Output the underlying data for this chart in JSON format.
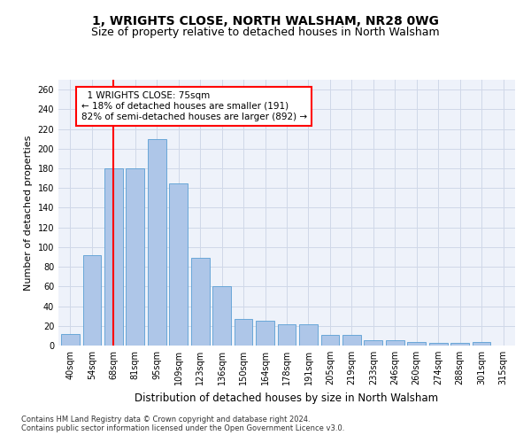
{
  "title_line1": "1, WRIGHTS CLOSE, NORTH WALSHAM, NR28 0WG",
  "title_line2": "Size of property relative to detached houses in North Walsham",
  "xlabel": "Distribution of detached houses by size in North Walsham",
  "ylabel": "Number of detached properties",
  "categories": [
    "40sqm",
    "54sqm",
    "68sqm",
    "81sqm",
    "95sqm",
    "109sqm",
    "123sqm",
    "136sqm",
    "150sqm",
    "164sqm",
    "178sqm",
    "191sqm",
    "205sqm",
    "219sqm",
    "233sqm",
    "246sqm",
    "260sqm",
    "274sqm",
    "288sqm",
    "301sqm",
    "315sqm"
  ],
  "values": [
    12,
    92,
    180,
    180,
    210,
    165,
    89,
    60,
    27,
    25,
    22,
    22,
    11,
    11,
    5,
    5,
    4,
    3,
    3,
    4,
    0
  ],
  "bar_color": "#aec6e8",
  "bar_edge_color": "#5a9fd4",
  "grid_color": "#d0d8e8",
  "background_color": "#eef2fa",
  "vline_x": 2.0,
  "vline_color": "red",
  "annotation_text": "  1 WRIGHTS CLOSE: 75sqm\n← 18% of detached houses are smaller (191)\n82% of semi-detached houses are larger (892) →",
  "annotation_box_color": "white",
  "annotation_box_edge": "red",
  "ylim": [
    0,
    270
  ],
  "yticks": [
    0,
    20,
    40,
    60,
    80,
    100,
    120,
    140,
    160,
    180,
    200,
    220,
    240,
    260
  ],
  "footer_line1": "Contains HM Land Registry data © Crown copyright and database right 2024.",
  "footer_line2": "Contains public sector information licensed under the Open Government Licence v3.0.",
  "title_fontsize": 10,
  "subtitle_fontsize": 9,
  "tick_fontsize": 7,
  "ylabel_fontsize": 8,
  "xlabel_fontsize": 8.5,
  "annotation_fontsize": 7.5,
  "footer_fontsize": 6
}
